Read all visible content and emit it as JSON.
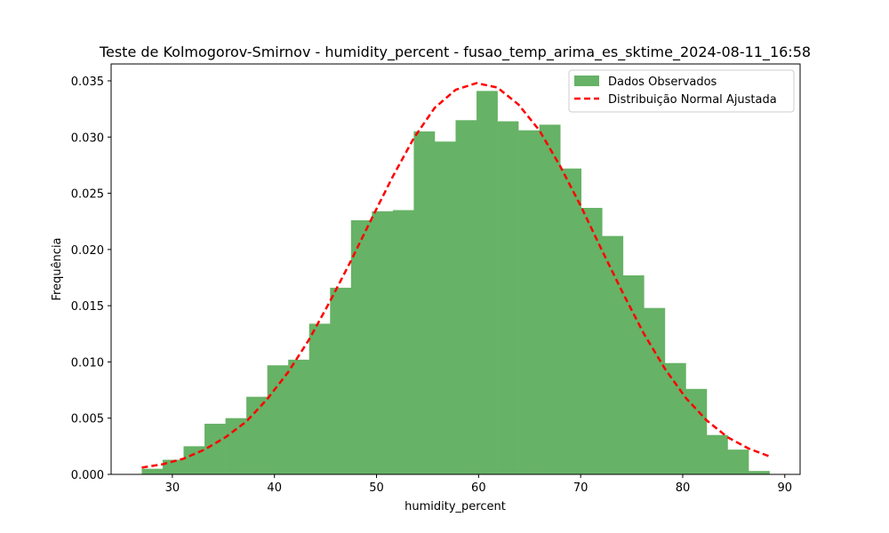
{
  "chart_data": {
    "type": "bar",
    "title": "Teste de Kolmogorov-Smirnov - humidity_percent - fusao_temp_arima_es_sktime_2024-08-11_16:58",
    "xlabel": "humidity_percent",
    "ylabel": "Frequência",
    "xlim": [
      24,
      91.5
    ],
    "ylim": [
      0,
      0.0365
    ],
    "xticks": [
      30,
      40,
      50,
      60,
      70,
      80,
      90
    ],
    "yticks": [
      0.0,
      0.005,
      0.01,
      0.015,
      0.02,
      0.025,
      0.03,
      0.035
    ],
    "ytick_labels": [
      "0.000",
      "0.005",
      "0.010",
      "0.015",
      "0.020",
      "0.025",
      "0.030",
      "0.035"
    ],
    "grid": false,
    "legend_position": "top-right",
    "series": [
      {
        "name": "Dados Observados",
        "kind": "histogram",
        "color": "#66b266",
        "bin_start": 27.0,
        "bin_width": 2.05,
        "values": [
          0.0005,
          0.0013,
          0.0025,
          0.0045,
          0.005,
          0.0069,
          0.0097,
          0.0102,
          0.0134,
          0.0166,
          0.0226,
          0.0234,
          0.0235,
          0.0305,
          0.0296,
          0.0315,
          0.0341,
          0.0314,
          0.0306,
          0.0311,
          0.0272,
          0.0237,
          0.0212,
          0.0177,
          0.0148,
          0.0099,
          0.0076,
          0.0035,
          0.0022,
          0.0003
        ]
      },
      {
        "name": "Distribuição Normal Ajustada",
        "kind": "line",
        "color": "#ff0000",
        "style": "dashed",
        "x": [
          27.0,
          29.05,
          31.1,
          33.15,
          35.2,
          37.25,
          39.3,
          41.35,
          43.4,
          45.45,
          47.5,
          49.55,
          51.6,
          53.65,
          55.7,
          57.75,
          59.8,
          61.85,
          63.9,
          65.95,
          68.0,
          70.05,
          72.1,
          74.15,
          76.2,
          78.25,
          80.3,
          82.35,
          84.4,
          86.45,
          88.5
        ],
        "y": [
          0.0006,
          0.0009,
          0.0014,
          0.0022,
          0.0033,
          0.0047,
          0.0067,
          0.0091,
          0.012,
          0.0154,
          0.019,
          0.0228,
          0.0265,
          0.0299,
          0.0326,
          0.0342,
          0.0348,
          0.0344,
          0.0329,
          0.0306,
          0.0274,
          0.0238,
          0.0199,
          0.0161,
          0.0125,
          0.0094,
          0.0068,
          0.0048,
          0.0033,
          0.0023,
          0.0016
        ]
      }
    ]
  }
}
